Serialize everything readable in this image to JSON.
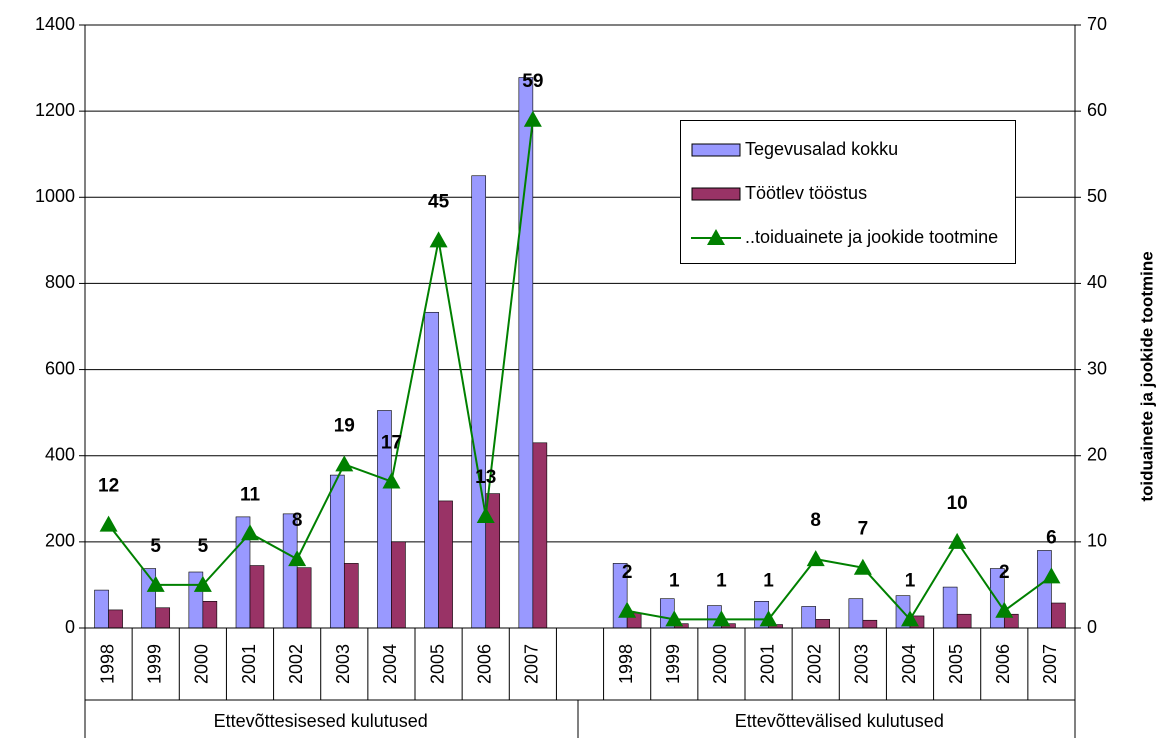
{
  "chart_data": {
    "type": "bar",
    "categories": [
      "1998",
      "1999",
      "2000",
      "2001",
      "2002",
      "2003",
      "2004",
      "2005",
      "2006",
      "2007",
      null,
      "1998",
      "1999",
      "2000",
      "2001",
      "2002",
      "2003",
      "2004",
      "2005",
      "2006",
      "2007"
    ],
    "groups": [
      {
        "label": "Ettevõttesisesed kulutused",
        "from": 0,
        "to": 9
      },
      {
        "label": "Ettevõttevälised kulutused",
        "from": 11,
        "to": 20
      }
    ],
    "series": [
      {
        "name": "Tegevusalad kokku",
        "color": "#9999ff",
        "values": [
          88,
          138,
          130,
          258,
          265,
          355,
          505,
          733,
          1050,
          1278,
          null,
          150,
          68,
          52,
          62,
          50,
          68,
          75,
          95,
          138,
          180
        ]
      },
      {
        "name": "Töötlev tööstus",
        "color": "#993366",
        "values": [
          42,
          47,
          62,
          145,
          140,
          150,
          200,
          295,
          312,
          430,
          null,
          35,
          10,
          10,
          8,
          20,
          18,
          28,
          32,
          32,
          58
        ]
      },
      {
        "name": "..toiduainete ja jookide tootmine",
        "color": "#008000",
        "type": "line",
        "axis": "y2",
        "values": [
          12,
          5,
          5,
          11,
          8,
          19,
          17,
          45,
          13,
          59,
          null,
          2,
          1,
          1,
          1,
          8,
          7,
          1,
          10,
          2,
          6
        ]
      }
    ],
    "y2label": "toiduainete ja jookide tootmine",
    "ylim": [
      0,
      1400
    ],
    "yticks": [
      0,
      200,
      400,
      600,
      800,
      1000,
      1200,
      1400
    ],
    "y2lim": [
      0,
      70
    ],
    "y2ticks": [
      0,
      10,
      20,
      30,
      40,
      50,
      60,
      70
    ],
    "grid": true,
    "legend": "upper right"
  }
}
